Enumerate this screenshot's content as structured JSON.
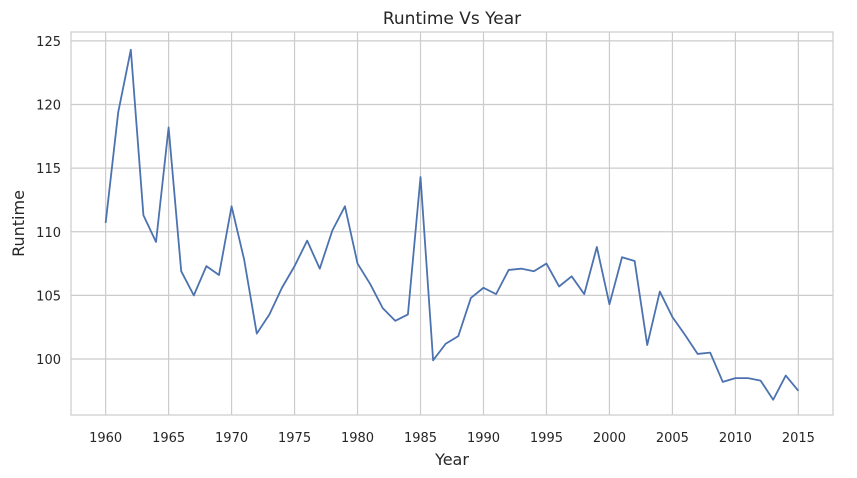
{
  "chart_data": {
    "type": "line",
    "title": "Runtime Vs Year",
    "xlabel": "Year",
    "ylabel": "Runtime",
    "xlim": [
      1957.25,
      2017.75
    ],
    "ylim": [
      95.6,
      125.7
    ],
    "xticks": [
      1960,
      1965,
      1970,
      1975,
      1980,
      1985,
      1990,
      1995,
      2000,
      2005,
      2010,
      2015
    ],
    "yticks": [
      100,
      105,
      110,
      115,
      120,
      125
    ],
    "grid": true,
    "line_color": "#4c72b0",
    "series": [
      {
        "x": [
          1960,
          1961,
          1962,
          1963,
          1964,
          1965,
          1966,
          1967,
          1968,
          1969,
          1970,
          1971,
          1972,
          1973,
          1974,
          1975,
          1976,
          1977,
          1978,
          1979,
          1980,
          1981,
          1982,
          1983,
          1984,
          1985,
          1986,
          1987,
          1988,
          1989,
          1990,
          1991,
          1992,
          1993,
          1994,
          1995,
          1996,
          1997,
          1998,
          1999,
          2000,
          2001,
          2002,
          2003,
          2004,
          2005,
          2006,
          2007,
          2008,
          2009,
          2010,
          2011,
          2012,
          2013,
          2014,
          2015
        ],
        "values": [
          110.7,
          119.4,
          124.3,
          111.3,
          109.2,
          118.2,
          106.9,
          105.0,
          107.3,
          106.6,
          112.0,
          107.8,
          102.0,
          103.5,
          105.6,
          107.3,
          109.3,
          107.1,
          110.1,
          112.0,
          107.5,
          105.9,
          104.0,
          103.0,
          103.5,
          114.3,
          99.9,
          101.2,
          101.8,
          104.8,
          105.6,
          105.1,
          107.0,
          107.1,
          106.9,
          107.5,
          105.7,
          106.5,
          105.1,
          108.8,
          104.3,
          108.0,
          107.7,
          101.1,
          105.3,
          103.3,
          101.9,
          100.4,
          100.5,
          98.2,
          98.5,
          98.5,
          98.3,
          96.8,
          98.7,
          97.5
        ]
      }
    ]
  }
}
